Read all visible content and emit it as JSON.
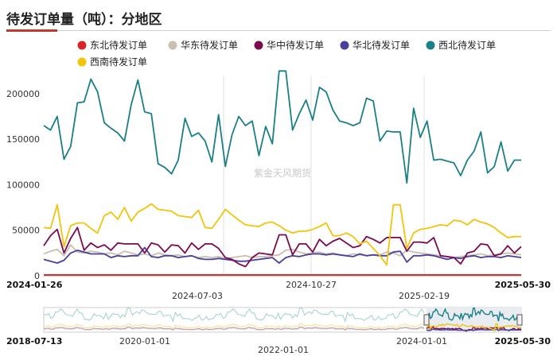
{
  "title": "待发订单量（吨）：分地区",
  "watermark": "紫金天风期货",
  "chart_data": {
    "type": "line",
    "ylim": [
      0,
      220000
    ],
    "yticks": [
      0,
      50000,
      100000,
      150000,
      200000
    ],
    "x_start_label": "2024-01-26",
    "x_end_label": "2025-05-30",
    "x_tick_labels": [
      "2024-07-03",
      "2024-10-27",
      "2025-02-19"
    ],
    "grid": "vertical",
    "legend_position": "top",
    "navigator": {
      "start_label": "2018-07-13",
      "end_label": "2025-05-30",
      "tick_labels": [
        "2020-01-01",
        "2022-01-01",
        "2024-01-01"
      ]
    },
    "series": [
      {
        "name": "东北待发订单",
        "color": "#d62728",
        "values": [
          1000,
          1000,
          1000,
          1000,
          1000,
          1000,
          1000,
          1000,
          1000,
          1000,
          1000,
          1000,
          1000,
          1000,
          1000,
          1000,
          1000,
          1000,
          1000,
          1000,
          1000,
          1000,
          1000,
          1000,
          1000,
          1000,
          1000,
          1000,
          1000,
          1000,
          1000,
          1000,
          1000,
          1000,
          1000,
          1000,
          1000,
          1000,
          1000,
          1000,
          1000,
          1000,
          1000,
          1000,
          1000,
          1000,
          1000,
          1000,
          1000,
          1000,
          1000,
          1000,
          1000,
          1000,
          1000,
          1000,
          1000,
          1000,
          1000,
          1000,
          1000,
          1000,
          1000,
          1000,
          1000,
          1000,
          1000,
          1000,
          1000,
          1000,
          1000,
          1000
        ]
      },
      {
        "name": "华东待发订单",
        "color": "#c9bfae",
        "values": [
          24000,
          27000,
          29000,
          22000,
          34000,
          26000,
          25000,
          27000,
          26000,
          24000,
          25000,
          23000,
          27000,
          25000,
          23000,
          24000,
          22000,
          25000,
          23000,
          22000,
          23000,
          21000,
          22000,
          20000,
          21000,
          20000,
          21000,
          19000,
          20000,
          21000,
          22000,
          20000,
          21000,
          21000,
          22000,
          23000,
          28000,
          29000,
          26000,
          24000,
          25000,
          26000,
          24000,
          25000,
          23000,
          22000,
          24000,
          23000,
          22000,
          23000,
          23000,
          26000,
          25000,
          22000,
          28000,
          26000,
          25000,
          24000,
          23000,
          22000,
          21000,
          20000,
          21000,
          22000,
          23000,
          24000,
          22000,
          23000,
          24000,
          25000,
          24000,
          23000
        ]
      },
      {
        "name": "华中待发订单",
        "color": "#7b0a4f",
        "values": [
          33000,
          44000,
          51000,
          25000,
          41000,
          53000,
          28000,
          36000,
          31000,
          34000,
          28000,
          36000,
          35000,
          35000,
          35000,
          25000,
          36000,
          34000,
          26000,
          34000,
          33000,
          25000,
          36000,
          29000,
          35000,
          35000,
          30000,
          20000,
          18000,
          13000,
          10000,
          20000,
          25000,
          24000,
          23000,
          45000,
          45000,
          23000,
          35000,
          35000,
          26000,
          40000,
          33000,
          38000,
          41000,
          36000,
          31000,
          33000,
          43000,
          40000,
          36000,
          42000,
          42000,
          42000,
          27000,
          37000,
          37000,
          36000,
          42000,
          22000,
          21000,
          20000,
          13000,
          25000,
          27000,
          35000,
          34000,
          22000,
          24000,
          33000,
          25000,
          32000
        ]
      },
      {
        "name": "华北待发订单",
        "color": "#4b3f9e",
        "values": [
          18000,
          16000,
          14000,
          17000,
          25000,
          28000,
          26000,
          24000,
          24000,
          24000,
          20000,
          22000,
          21000,
          22000,
          22000,
          31000,
          21000,
          20000,
          22000,
          22000,
          20000,
          21000,
          22000,
          19000,
          18000,
          18000,
          19000,
          18000,
          17000,
          16000,
          16000,
          17000,
          18000,
          19000,
          20000,
          14000,
          20000,
          22000,
          21000,
          23000,
          24000,
          24000,
          23000,
          24000,
          23000,
          22000,
          21000,
          24000,
          22000,
          23000,
          22000,
          22000,
          26000,
          27000,
          15000,
          22000,
          22000,
          23000,
          22000,
          20000,
          18000,
          20000,
          19000,
          21000,
          22000,
          20000,
          21000,
          21000,
          20000,
          22000,
          21000,
          20000
        ]
      },
      {
        "name": "西北待发订单",
        "color": "#1a7f86",
        "values": [
          165000,
          160000,
          175000,
          128000,
          142000,
          190000,
          191000,
          216000,
          202000,
          168000,
          162000,
          157000,
          148000,
          188000,
          215000,
          180000,
          178000,
          123000,
          119000,
          112000,
          127000,
          173000,
          153000,
          157000,
          148000,
          125000,
          177000,
          120000,
          155000,
          175000,
          165000,
          170000,
          132000,
          164000,
          145000,
          225000,
          225000,
          160000,
          178000,
          193000,
          171000,
          207000,
          202000,
          182000,
          170000,
          168000,
          165000,
          168000,
          195000,
          192000,
          148000,
          159000,
          158000,
          158000,
          102000,
          184000,
          152000,
          170000,
          127000,
          128000,
          126000,
          124000,
          110000,
          127000,
          137000,
          158000,
          113000,
          120000,
          147000,
          115000,
          127000,
          127000
        ]
      },
      {
        "name": "西南待发订单",
        "color": "#f2c40c",
        "values": [
          53000,
          52000,
          78000,
          32000,
          55000,
          58000,
          58000,
          52000,
          47000,
          66000,
          70000,
          62000,
          75000,
          60000,
          70000,
          74000,
          79000,
          73000,
          72000,
          71000,
          66000,
          65000,
          64000,
          72000,
          53000,
          52000,
          62000,
          73000,
          67000,
          61000,
          56000,
          55000,
          54000,
          58000,
          59000,
          55000,
          50000,
          47000,
          49000,
          49000,
          51000,
          54000,
          58000,
          44000,
          44000,
          47000,
          43000,
          35000,
          38000,
          30000,
          22000,
          12000,
          78000,
          78000,
          30000,
          47000,
          51000,
          52000,
          54000,
          56000,
          55000,
          61000,
          60000,
          56000,
          62000,
          59000,
          57000,
          53000,
          47000,
          42000,
          43000,
          43000
        ]
      }
    ]
  }
}
